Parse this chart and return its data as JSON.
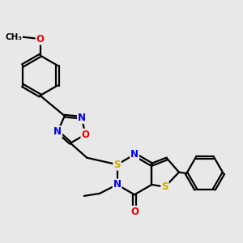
{
  "background_color": "#e8e8e8",
  "atom_colors": {
    "C": "#000000",
    "N": "#0000ee",
    "O": "#ee0000",
    "S": "#ccaa00",
    "H": "#000000"
  },
  "bond_color": "#000000",
  "bond_width": 1.6,
  "font_size_atom": 8.5
}
